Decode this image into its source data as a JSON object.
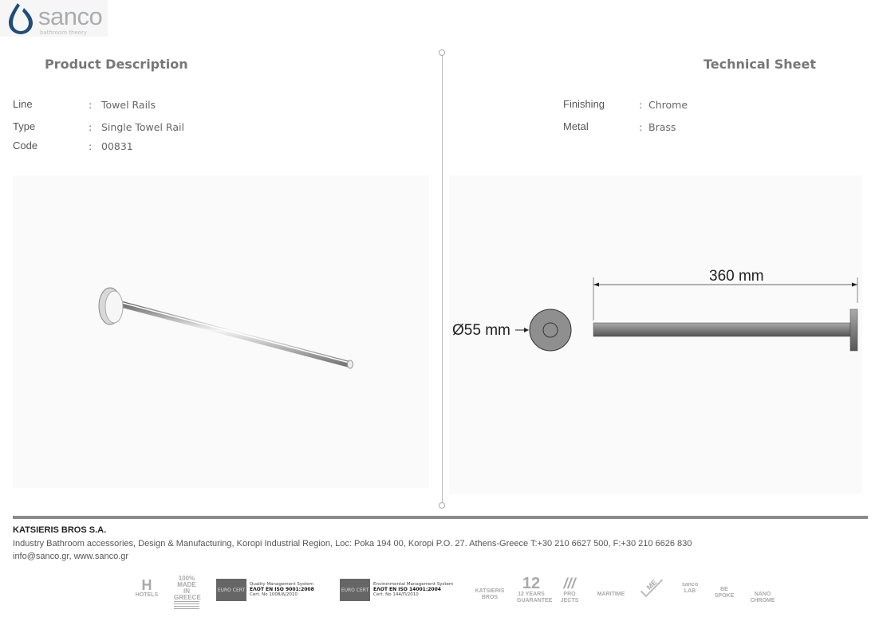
{
  "brand": {
    "name": "sanco",
    "tagline": "bathroom theory",
    "accent": "#1f4e79"
  },
  "left": {
    "heading": "Product Description",
    "rows": [
      {
        "label": "Line",
        "sep": ":",
        "value": "Towel Rails"
      },
      {
        "label": "Type",
        "sep": ":",
        "value": "Single Towel Rail"
      },
      {
        "label": "Code",
        "sep": ":",
        "value": "00831"
      }
    ]
  },
  "right": {
    "heading": "Technical Sheet",
    "rows": [
      {
        "label": "Finishing",
        "sep": ":",
        "value": "Chrome"
      },
      {
        "label": "Metal",
        "sep": ":",
        "value": "Brass"
      }
    ]
  },
  "drawing": {
    "length": "360 mm",
    "diameter": "Ø55 mm"
  },
  "footer": {
    "company": "KATSIERIS BROS S.A.",
    "address": "Industry Bathroom accessories, Design & Manufacturing, Koropi Industrial Region, Loc: Poka 194 00, Koropi P.O. 27. Athens-Greece   T:+30 210 6627 500, F:+30 210 6626 830",
    "contact": "info@sanco.gr, www.sanco.gr"
  },
  "badges": [
    "HOTELS",
    "100% MADE IN GREECE",
    "KATSIERIS BROS",
    "12 YEARS GUARANTEE",
    "PRO JECTS",
    "MARITIME",
    "ME",
    "sanco LAB",
    "BE SPOKE",
    "NANO CHROME"
  ],
  "certs": [
    {
      "mark": "EURO CERT",
      "line1": "Quality Management System",
      "line2": "ΕΛΟΤ EN ISO 9001:2008",
      "line3": "Cert. No 1008/Δ/2010"
    },
    {
      "mark": "EURO CERT",
      "line1": "Environmental Management System",
      "line2": "ΕΛΟΤ EN ISO 14001:2004",
      "line3": "Cert. No 144/П/2010"
    }
  ]
}
